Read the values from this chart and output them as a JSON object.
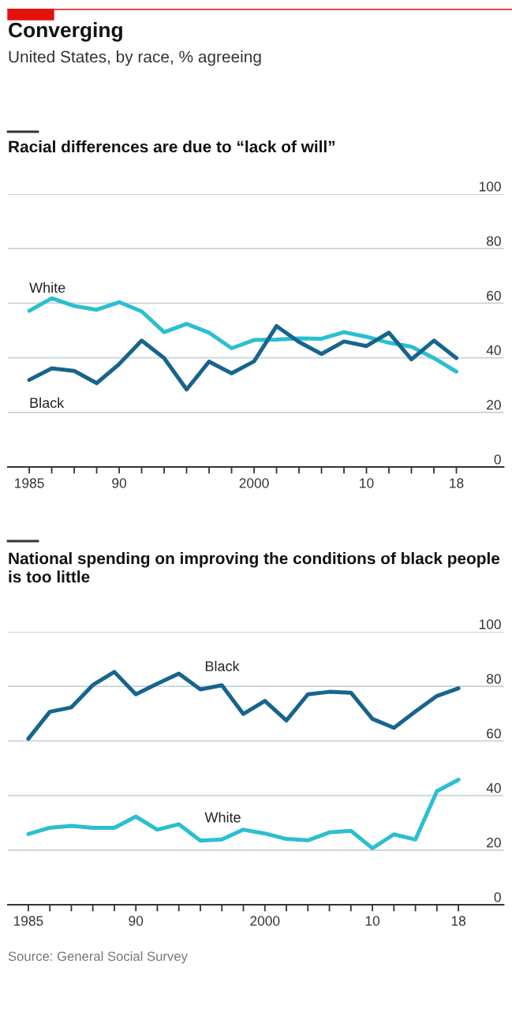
{
  "chart_data": [
    {
      "type": "line",
      "title": "Racial differences are due to “lack of will”",
      "annotations": [
        "Converging",
        "United States, by race, % agreeing"
      ],
      "categories": [
        "1985",
        null,
        null,
        null,
        "90",
        null,
        null,
        null,
        null,
        null,
        "2000",
        null,
        null,
        null,
        null,
        "10",
        null,
        null,
        null,
        "18"
      ],
      "series": [
        {
          "name": "White",
          "color": "#2bbfd0",
          "values": [
            57.2,
            61.8,
            59,
            57.6,
            60.4,
            57,
            49.4,
            52.4,
            49.2,
            43.5,
            46.5,
            46.7,
            47.1,
            47,
            49.4,
            47.7,
            45.5,
            44.1,
            39.9,
            34.9
          ]
        },
        {
          "name": "Black",
          "color": "#17648d",
          "values": [
            31.9,
            36.1,
            35.2,
            30.7,
            37.7,
            46.3,
            39.9,
            28.4,
            38.6,
            34.3,
            38.7,
            51.6,
            45.8,
            41.4,
            46,
            44.3,
            49.2,
            39.4,
            46.3,
            39.9
          ]
        }
      ],
      "ylim": [
        0,
        100
      ],
      "yticks": [
        0,
        20,
        40,
        60,
        80,
        100
      ],
      "grid": "y",
      "legend": false
    },
    {
      "type": "line",
      "title": "National spending on improving the conditions of black people is too little",
      "annotations": [
        "Source: General Social Survey"
      ],
      "categories": [
        "1985",
        null,
        null,
        null,
        null,
        "90",
        null,
        null,
        null,
        null,
        null,
        "2000",
        null,
        null,
        null,
        null,
        "10",
        null,
        null,
        null,
        "18"
      ],
      "series": [
        {
          "name": "Black",
          "color": "#17648d",
          "values": [
            60.8,
            70.7,
            72.3,
            80.5,
            85.3,
            77.1,
            81,
            84.7,
            78.9,
            80.4,
            69.9,
            74.7,
            67.5,
            77.1,
            78,
            77.7,
            68.1,
            64.8,
            70.8,
            76.5,
            79.3
          ]
        },
        {
          "name": "White",
          "color": "#2bbfd0",
          "values": [
            25.9,
            28.2,
            28.9,
            28.2,
            28.2,
            32.3,
            27.5,
            29.5,
            23.5,
            23.9,
            27.5,
            26.1,
            24.1,
            23.6,
            26.5,
            27.1,
            20.7,
            25.8,
            23.9,
            41.6,
            45.8
          ]
        }
      ],
      "ylim": [
        0,
        100
      ],
      "yticks": [
        0,
        20,
        40,
        60,
        80,
        100
      ],
      "grid": "y",
      "legend": false
    }
  ]
}
